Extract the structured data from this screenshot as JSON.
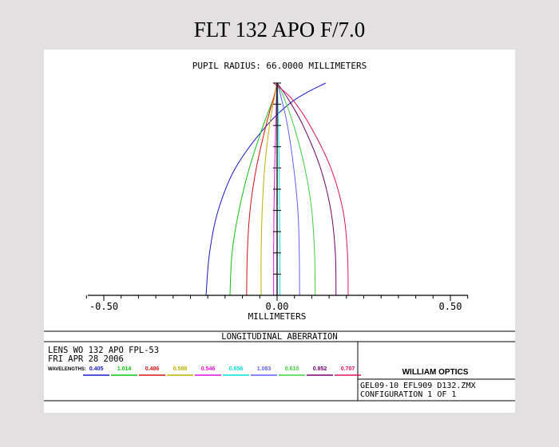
{
  "page": {
    "title": "FLT 132 APO F/7.0"
  },
  "chart_data": {
    "type": "line",
    "title": "PUPIL RADIUS: 66.0000 MILLIMETERS",
    "xlabel": "MILLIMETERS",
    "xlim": [
      -0.5,
      0.5
    ],
    "ylim": [
      0,
      1
    ],
    "x_tick_labels": [
      {
        "value": -0.5,
        "label": "-0.50"
      },
      {
        "value": 0.0,
        "label": "0.00"
      },
      {
        "value": 0.5,
        "label": "0.50"
      }
    ],
    "series": [
      {
        "name": "0.405",
        "color": "#1818c8",
        "points": [
          [
            -0.205,
            0
          ],
          [
            -0.195,
            0.2
          ],
          [
            -0.17,
            0.4
          ],
          [
            -0.12,
            0.6
          ],
          [
            -0.03,
            0.8
          ],
          [
            0.05,
            0.92
          ],
          [
            0.14,
            1.0
          ]
        ]
      },
      {
        "name": "1.014",
        "color": "#10c010",
        "points": [
          [
            -0.136,
            0
          ],
          [
            -0.13,
            0.2
          ],
          [
            -0.11,
            0.4
          ],
          [
            -0.08,
            0.6
          ],
          [
            -0.04,
            0.8
          ],
          [
            -0.01,
            0.93
          ],
          [
            0.0,
            1.0
          ]
        ]
      },
      {
        "name": "0.486",
        "color": "#d81010",
        "points": [
          [
            -0.088,
            0
          ],
          [
            -0.086,
            0.2
          ],
          [
            -0.078,
            0.4
          ],
          [
            -0.06,
            0.6
          ],
          [
            -0.032,
            0.8
          ],
          [
            -0.01,
            0.93
          ],
          [
            0.0,
            1.0
          ]
        ]
      },
      {
        "name": "0.588",
        "color": "#c0b000",
        "points": [
          [
            -0.046,
            0
          ],
          [
            -0.046,
            0.2
          ],
          [
            -0.043,
            0.4
          ],
          [
            -0.036,
            0.6
          ],
          [
            -0.022,
            0.8
          ],
          [
            -0.008,
            0.93
          ],
          [
            0.0,
            1.0
          ]
        ]
      },
      {
        "name": "0.546",
        "color": "#e010e0",
        "points": [
          [
            -0.01,
            0
          ],
          [
            -0.01,
            0.2
          ],
          [
            -0.009,
            0.4
          ],
          [
            -0.007,
            0.6
          ],
          [
            -0.004,
            0.8
          ],
          [
            -0.002,
            0.93
          ],
          [
            0.0,
            1.0
          ]
        ]
      },
      {
        "name": "0.656",
        "color": "#00e0e0",
        "points": [
          [
            0.008,
            0
          ],
          [
            0.008,
            0.2
          ],
          [
            0.007,
            0.4
          ],
          [
            0.006,
            0.6
          ],
          [
            0.004,
            0.8
          ],
          [
            0.002,
            0.93
          ],
          [
            0.0,
            1.0
          ]
        ]
      },
      {
        "name": "1.083",
        "color": "#6060ff",
        "points": [
          [
            0.065,
            0
          ],
          [
            0.064,
            0.2
          ],
          [
            0.06,
            0.4
          ],
          [
            0.048,
            0.6
          ],
          [
            0.03,
            0.8
          ],
          [
            0.012,
            0.93
          ],
          [
            0.0,
            1.0
          ]
        ]
      },
      {
        "name": "0.610",
        "color": "#40d040",
        "points": [
          [
            0.11,
            0
          ],
          [
            0.108,
            0.2
          ],
          [
            0.1,
            0.4
          ],
          [
            0.08,
            0.6
          ],
          [
            0.048,
            0.8
          ],
          [
            0.02,
            0.93
          ],
          [
            0.0,
            1.0
          ]
        ]
      },
      {
        "name": "0.852",
        "color": "#700070",
        "points": [
          [
            0.17,
            0
          ],
          [
            0.168,
            0.2
          ],
          [
            0.155,
            0.4
          ],
          [
            0.125,
            0.6
          ],
          [
            0.075,
            0.8
          ],
          [
            0.03,
            0.93
          ],
          [
            0.0,
            1.0
          ]
        ]
      },
      {
        "name": "0.707",
        "color": "#e01060",
        "points": [
          [
            0.205,
            0
          ],
          [
            0.203,
            0.2
          ],
          [
            0.19,
            0.4
          ],
          [
            0.155,
            0.6
          ],
          [
            0.095,
            0.8
          ],
          [
            0.04,
            0.93
          ],
          [
            -0.01,
            1.0
          ]
        ]
      }
    ]
  },
  "footer": {
    "panel_title": "LONGITUDINAL ABERRATION",
    "lens_name": "LENS WO 132 APO FPL-53",
    "date": "FRI APR 28 2006",
    "wavelengths_label": "WAVELENGTHS:",
    "company": "WILLIAM OPTICS",
    "filename": "GEL09-10 EFL909 D132.ZMX",
    "configuration": "CONFIGURATION 1 OF 1"
  }
}
